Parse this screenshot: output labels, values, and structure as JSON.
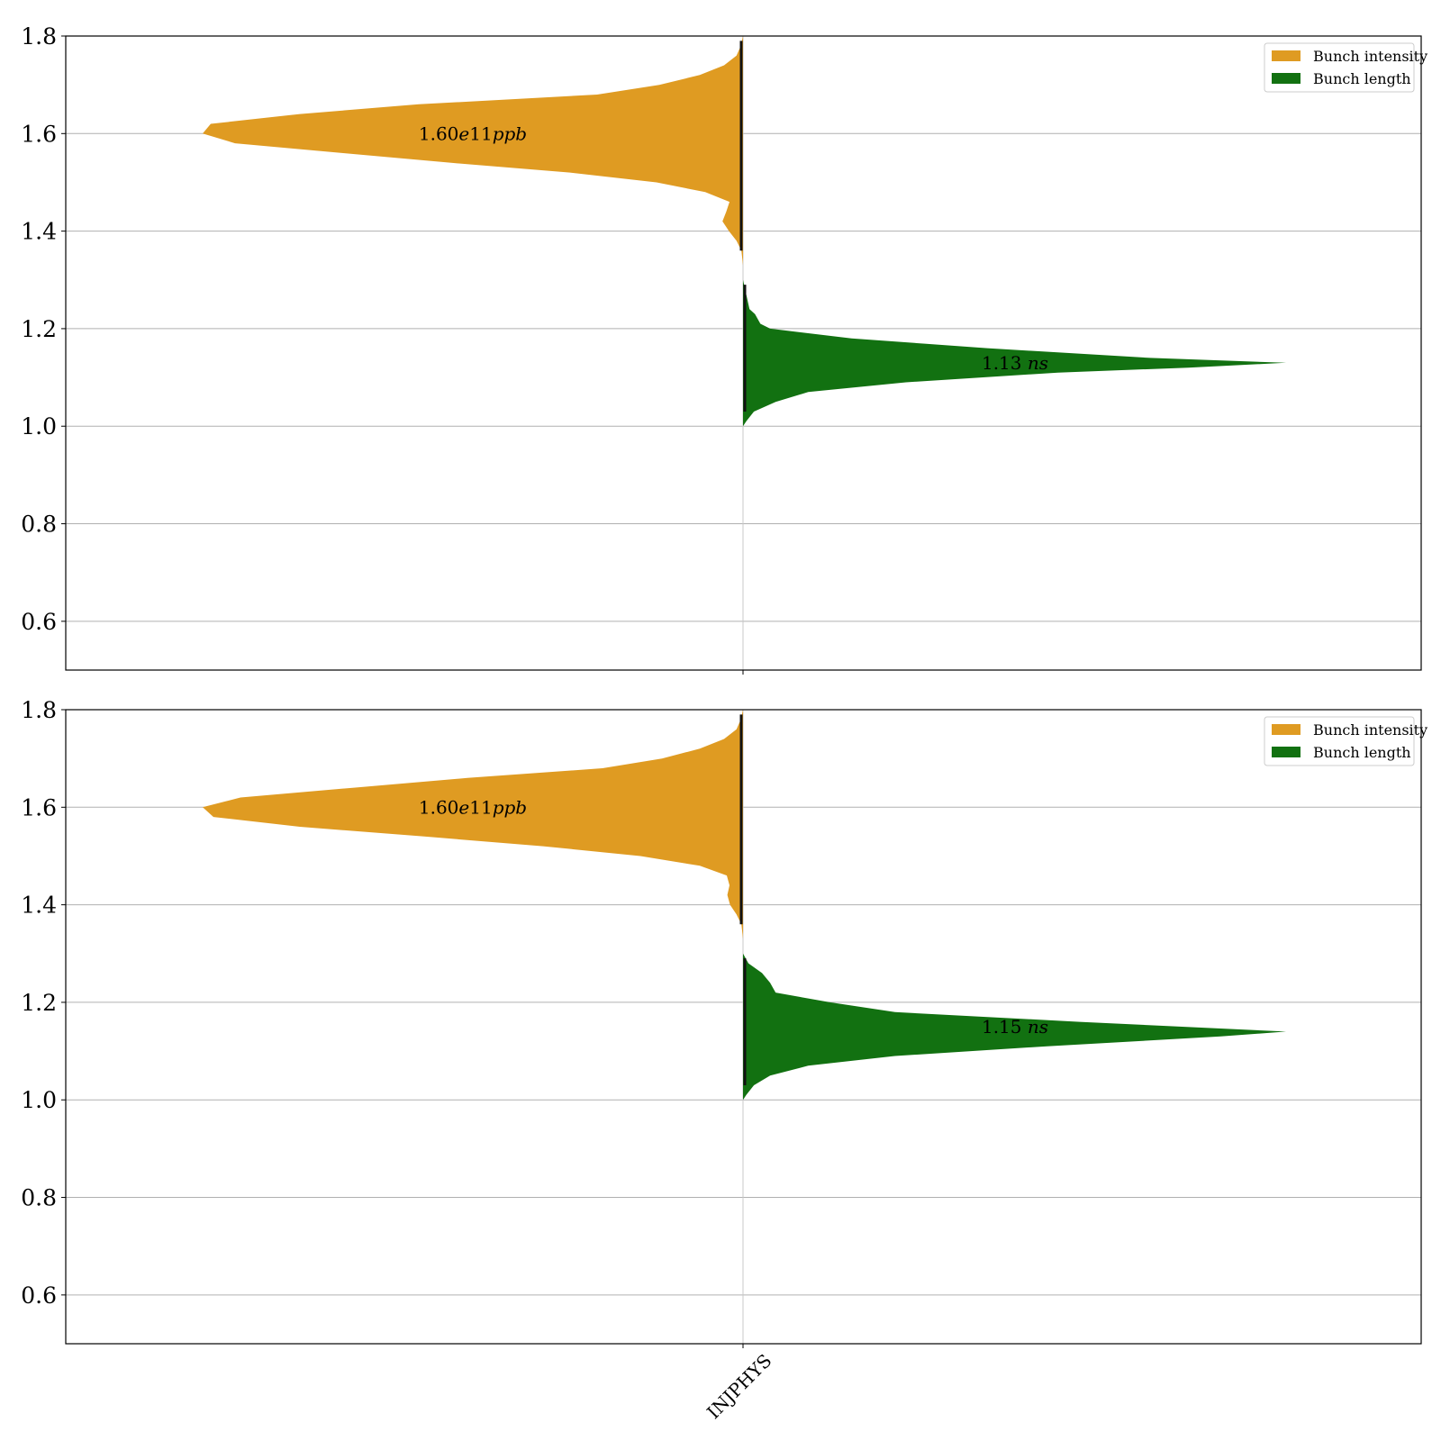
{
  "chart_data": [
    {
      "type": "violin",
      "categories": [
        "INJPHYS"
      ],
      "ylim": [
        0.5,
        1.8
      ],
      "yticks": [
        "0.6",
        "0.8",
        "1.0",
        "1.2",
        "1.4",
        "1.6",
        "1.8"
      ],
      "grid": true,
      "legend_position": "top-right",
      "colors": {
        "intensity": "#df9b22",
        "length": "#127111",
        "median_line": "#111111"
      },
      "series": [
        {
          "name": "Bunch intensity",
          "side": "left",
          "profile": [
            [
              1.33,
              0.0
            ],
            [
              1.36,
              0.003
            ],
            [
              1.38,
              0.012
            ],
            [
              1.4,
              0.026
            ],
            [
              1.42,
              0.038
            ],
            [
              1.44,
              0.031
            ],
            [
              1.46,
              0.025
            ],
            [
              1.48,
              0.07
            ],
            [
              1.5,
              0.16
            ],
            [
              1.52,
              0.32
            ],
            [
              1.54,
              0.54
            ],
            [
              1.56,
              0.74
            ],
            [
              1.58,
              0.94
            ],
            [
              1.6,
              1.0
            ],
            [
              1.62,
              0.985
            ],
            [
              1.64,
              0.82
            ],
            [
              1.66,
              0.6
            ],
            [
              1.68,
              0.27
            ],
            [
              1.7,
              0.155
            ],
            [
              1.72,
              0.08
            ],
            [
              1.74,
              0.035
            ],
            [
              1.76,
              0.012
            ],
            [
              1.78,
              0.004
            ],
            [
              1.8,
              0.0
            ]
          ],
          "annotation": {
            "y": 1.6,
            "text_main": "1.60",
            "text_italic": "e",
            "text_main2": "11",
            "text_italic2": "ppb"
          }
        },
        {
          "name": "Bunch length",
          "side": "right",
          "profile": [
            [
              1.0,
              0.0
            ],
            [
              1.01,
              0.006
            ],
            [
              1.03,
              0.02
            ],
            [
              1.05,
              0.06
            ],
            [
              1.07,
              0.12
            ],
            [
              1.09,
              0.3
            ],
            [
              1.11,
              0.58
            ],
            [
              1.12,
              0.82
            ],
            [
              1.13,
              1.0
            ],
            [
              1.14,
              0.75
            ],
            [
              1.16,
              0.45
            ],
            [
              1.18,
              0.2
            ],
            [
              1.2,
              0.05
            ],
            [
              1.21,
              0.032
            ],
            [
              1.23,
              0.022
            ],
            [
              1.24,
              0.012
            ],
            [
              1.27,
              0.006
            ],
            [
              1.3,
              0.0
            ]
          ],
          "annotation": {
            "y": 1.13,
            "text_main": "1.13 ",
            "text_italic": "ns"
          }
        }
      ]
    },
    {
      "type": "violin",
      "categories": [
        "INJPHYS"
      ],
      "ylim": [
        0.5,
        1.8
      ],
      "yticks": [
        "0.6",
        "0.8",
        "1.0",
        "1.2",
        "1.4",
        "1.6",
        "1.8"
      ],
      "grid": true,
      "legend_position": "top-right",
      "colors": {
        "intensity": "#df9b22",
        "length": "#127111",
        "median_line": "#111111"
      },
      "series": [
        {
          "name": "Bunch intensity",
          "side": "left",
          "profile": [
            [
              1.33,
              0.0
            ],
            [
              1.36,
              0.003
            ],
            [
              1.38,
              0.012
            ],
            [
              1.4,
              0.024
            ],
            [
              1.42,
              0.029
            ],
            [
              1.44,
              0.025
            ],
            [
              1.46,
              0.03
            ],
            [
              1.48,
              0.08
            ],
            [
              1.5,
              0.19
            ],
            [
              1.52,
              0.37
            ],
            [
              1.54,
              0.59
            ],
            [
              1.56,
              0.82
            ],
            [
              1.58,
              0.98
            ],
            [
              1.6,
              1.0
            ],
            [
              1.62,
              0.93
            ],
            [
              1.64,
              0.72
            ],
            [
              1.66,
              0.51
            ],
            [
              1.68,
              0.26
            ],
            [
              1.7,
              0.15
            ],
            [
              1.72,
              0.08
            ],
            [
              1.74,
              0.035
            ],
            [
              1.76,
              0.012
            ],
            [
              1.78,
              0.004
            ],
            [
              1.8,
              0.0
            ]
          ],
          "annotation": {
            "y": 1.6,
            "text_main": "1.60",
            "text_italic": "e",
            "text_main2": "11",
            "text_italic2": "ppb"
          }
        },
        {
          "name": "Bunch length",
          "side": "right",
          "profile": [
            [
              1.0,
              0.0
            ],
            [
              1.01,
              0.006
            ],
            [
              1.03,
              0.02
            ],
            [
              1.05,
              0.05
            ],
            [
              1.07,
              0.12
            ],
            [
              1.09,
              0.28
            ],
            [
              1.11,
              0.56
            ],
            [
              1.13,
              0.88
            ],
            [
              1.14,
              1.0
            ],
            [
              1.16,
              0.62
            ],
            [
              1.18,
              0.28
            ],
            [
              1.2,
              0.16
            ],
            [
              1.22,
              0.06
            ],
            [
              1.24,
              0.05
            ],
            [
              1.26,
              0.035
            ],
            [
              1.28,
              0.01
            ],
            [
              1.3,
              0.0
            ]
          ],
          "annotation": {
            "y": 1.15,
            "text_main": "1.15 ",
            "text_italic": "ns"
          }
        }
      ]
    }
  ],
  "x_tick_label": "INJPHYS"
}
